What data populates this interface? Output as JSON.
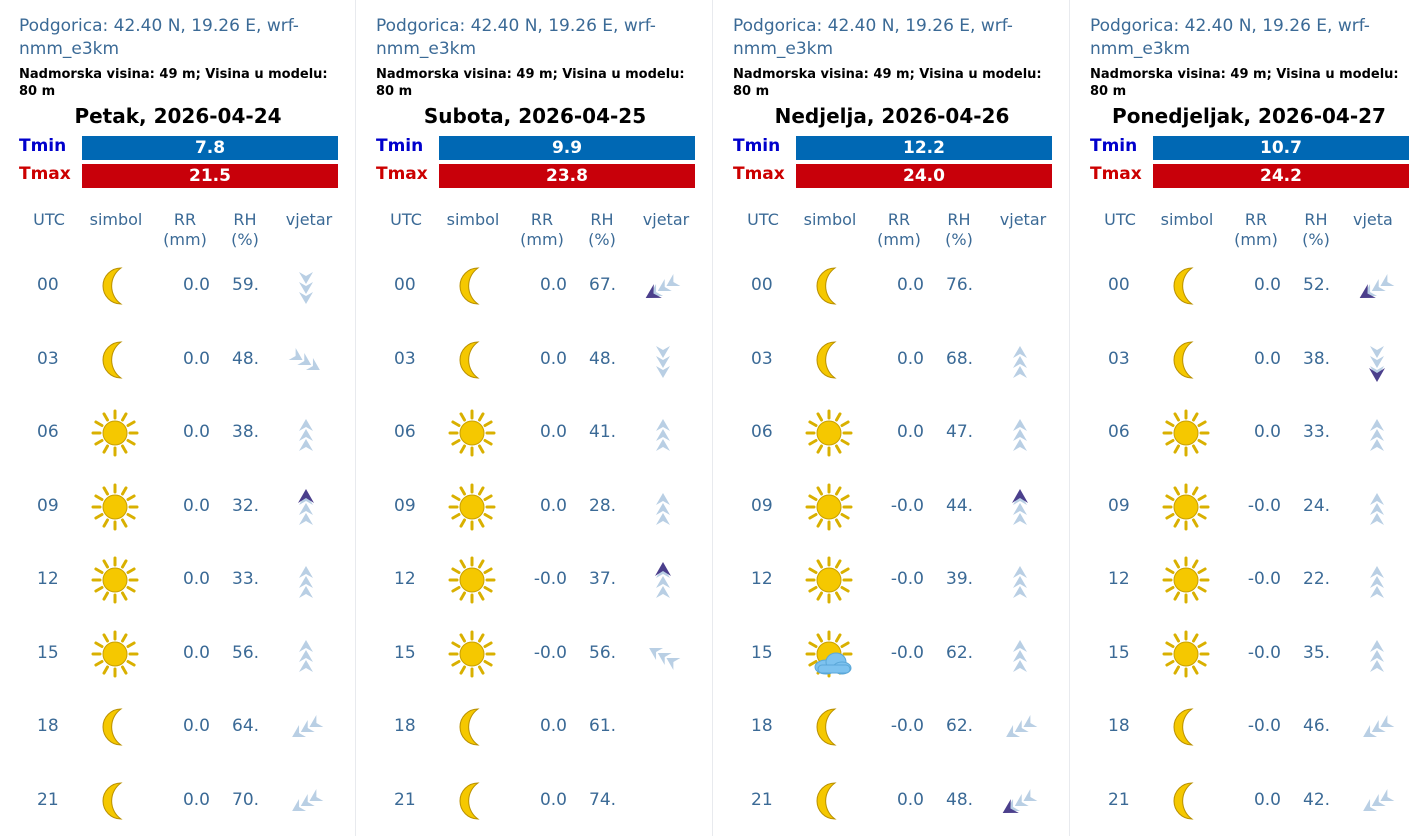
{
  "colors": {
    "text_blue": "#3b6a96",
    "tmin_label": "#0000cc",
    "tmin_bar": "#0068b4",
    "tmax_label": "#cc0000",
    "tmax_bar": "#c8000a",
    "wind_light": "#b9cfe4",
    "wind_dark": "#4b3f8c",
    "sun": "#f5c800",
    "cloud": "#7dc2ef"
  },
  "headers": {
    "utc": "UTC",
    "symbol": "simbol",
    "rr_line1": "RR",
    "rr_line2": "(mm)",
    "rh_line1": "RH",
    "rh_line2": "(%)",
    "wind": "vjetar",
    "wind_truncated": "vjeta"
  },
  "panels": [
    {
      "location": "Podgorica: 42.40 N, 19.26 E, wrf-nmm_e3km",
      "meta": "Nadmorska visina: 49 m; Visina u modelu: 80 m",
      "day": "Petak, 2026-04-24",
      "tmin_label": "Tmin",
      "tmax_label": "Tmax",
      "tmin": "7.8",
      "tmax": "21.5",
      "rows": [
        {
          "utc": "00",
          "symbol": "moon-icon",
          "rr": "0.0",
          "rh": "59.",
          "wind": {
            "dir": 180,
            "strong": false
          }
        },
        {
          "utc": "03",
          "symbol": "moon-icon",
          "rr": "0.0",
          "rh": "48.",
          "wind": {
            "dir": 120,
            "strong": false
          }
        },
        {
          "utc": "06",
          "symbol": "sun-icon",
          "rr": "0.0",
          "rh": "38.",
          "wind": {
            "dir": 0,
            "strong": false
          }
        },
        {
          "utc": "09",
          "symbol": "sun-icon",
          "rr": "0.0",
          "rh": "32.",
          "wind": {
            "dir": 0,
            "strong": true
          }
        },
        {
          "utc": "12",
          "symbol": "sun-icon",
          "rr": "0.0",
          "rh": "33.",
          "wind": {
            "dir": 0,
            "strong": false
          }
        },
        {
          "utc": "15",
          "symbol": "sun-icon",
          "rr": "0.0",
          "rh": "56.",
          "wind": {
            "dir": 0,
            "strong": false
          }
        },
        {
          "utc": "18",
          "symbol": "moon-icon",
          "rr": "0.0",
          "rh": "64.",
          "wind": {
            "dir": 240,
            "strong": false
          }
        },
        {
          "utc": "21",
          "symbol": "moon-icon",
          "rr": "0.0",
          "rh": "70.",
          "wind": {
            "dir": 240,
            "strong": false
          }
        }
      ]
    },
    {
      "location": "Podgorica: 42.40 N, 19.26 E, wrf-nmm_e3km",
      "meta": "Nadmorska visina: 49 m; Visina u modelu: 80 m",
      "day": "Subota, 2026-04-25",
      "tmin_label": "Tmin",
      "tmax_label": "Tmax",
      "tmin": "9.9",
      "tmax": "23.8",
      "rows": [
        {
          "utc": "00",
          "symbol": "moon-icon",
          "rr": "0.0",
          "rh": "67.",
          "wind": {
            "dir": 240,
            "strong": true
          }
        },
        {
          "utc": "03",
          "symbol": "moon-icon",
          "rr": "0.0",
          "rh": "48.",
          "wind": {
            "dir": 180,
            "strong": false
          }
        },
        {
          "utc": "06",
          "symbol": "sun-icon",
          "rr": "0.0",
          "rh": "41.",
          "wind": {
            "dir": 0,
            "strong": false
          }
        },
        {
          "utc": "09",
          "symbol": "sun-icon",
          "rr": "0.0",
          "rh": "28.",
          "wind": {
            "dir": 0,
            "strong": false
          }
        },
        {
          "utc": "12",
          "symbol": "sun-icon",
          "rr": "-0.0",
          "rh": "37.",
          "wind": {
            "dir": 0,
            "strong": true
          }
        },
        {
          "utc": "15",
          "symbol": "sun-icon",
          "rr": "-0.0",
          "rh": "56.",
          "wind": {
            "dir": 300,
            "strong": false
          }
        },
        {
          "utc": "18",
          "symbol": "moon-icon",
          "rr": "0.0",
          "rh": "61.",
          "wind": null
        },
        {
          "utc": "21",
          "symbol": "moon-icon",
          "rr": "0.0",
          "rh": "74.",
          "wind": null
        }
      ]
    },
    {
      "location": "Podgorica: 42.40 N, 19.26 E, wrf-nmm_e3km",
      "meta": "Nadmorska visina: 49 m; Visina u modelu: 80 m",
      "day": "Nedjelja, 2026-04-26",
      "tmin_label": "Tmin",
      "tmax_label": "Tmax",
      "tmin": "12.2",
      "tmax": "24.0",
      "rows": [
        {
          "utc": "00",
          "symbol": "moon-icon",
          "rr": "0.0",
          "rh": "76.",
          "wind": null
        },
        {
          "utc": "03",
          "symbol": "moon-icon",
          "rr": "0.0",
          "rh": "68.",
          "wind": {
            "dir": 0,
            "strong": false
          }
        },
        {
          "utc": "06",
          "symbol": "sun-icon",
          "rr": "0.0",
          "rh": "47.",
          "wind": {
            "dir": 0,
            "strong": false
          }
        },
        {
          "utc": "09",
          "symbol": "sun-icon",
          "rr": "-0.0",
          "rh": "44.",
          "wind": {
            "dir": 0,
            "strong": true
          }
        },
        {
          "utc": "12",
          "symbol": "sun-icon",
          "rr": "-0.0",
          "rh": "39.",
          "wind": {
            "dir": 0,
            "strong": false
          }
        },
        {
          "utc": "15",
          "symbol": "sun-cloud-icon",
          "rr": "-0.0",
          "rh": "62.",
          "wind": {
            "dir": 0,
            "strong": false
          }
        },
        {
          "utc": "18",
          "symbol": "moon-icon",
          "rr": "-0.0",
          "rh": "62.",
          "wind": {
            "dir": 240,
            "strong": false
          }
        },
        {
          "utc": "21",
          "symbol": "moon-icon",
          "rr": "0.0",
          "rh": "48.",
          "wind": {
            "dir": 240,
            "strong": true
          }
        }
      ]
    },
    {
      "location": "Podgorica: 42.40 N, 19.26 E, wrf-nmm_e3km",
      "meta": "Nadmorska visina: 49 m; Visina u modelu: 80 m",
      "day": "Ponedjeljak, 2026-04-27",
      "tmin_label": "Tmin",
      "tmax_label": "Tmax",
      "tmin": "10.7",
      "tmax": "24.2",
      "rows": [
        {
          "utc": "00",
          "symbol": "moon-icon",
          "rr": "0.0",
          "rh": "52.",
          "wind": {
            "dir": 240,
            "strong": true
          }
        },
        {
          "utc": "03",
          "symbol": "moon-icon",
          "rr": "0.0",
          "rh": "38.",
          "wind": {
            "dir": 180,
            "strong": true
          }
        },
        {
          "utc": "06",
          "symbol": "sun-icon",
          "rr": "0.0",
          "rh": "33.",
          "wind": {
            "dir": 0,
            "strong": false
          }
        },
        {
          "utc": "09",
          "symbol": "sun-icon",
          "rr": "-0.0",
          "rh": "24.",
          "wind": {
            "dir": 0,
            "strong": false
          }
        },
        {
          "utc": "12",
          "symbol": "sun-icon",
          "rr": "-0.0",
          "rh": "22.",
          "wind": {
            "dir": 0,
            "strong": false
          }
        },
        {
          "utc": "15",
          "symbol": "sun-icon",
          "rr": "-0.0",
          "rh": "35.",
          "wind": {
            "dir": 0,
            "strong": false
          }
        },
        {
          "utc": "18",
          "symbol": "moon-icon",
          "rr": "-0.0",
          "rh": "46.",
          "wind": {
            "dir": 240,
            "strong": false
          }
        },
        {
          "utc": "21",
          "symbol": "moon-icon",
          "rr": "0.0",
          "rh": "42.",
          "wind": {
            "dir": 240,
            "strong": false
          }
        }
      ]
    }
  ]
}
